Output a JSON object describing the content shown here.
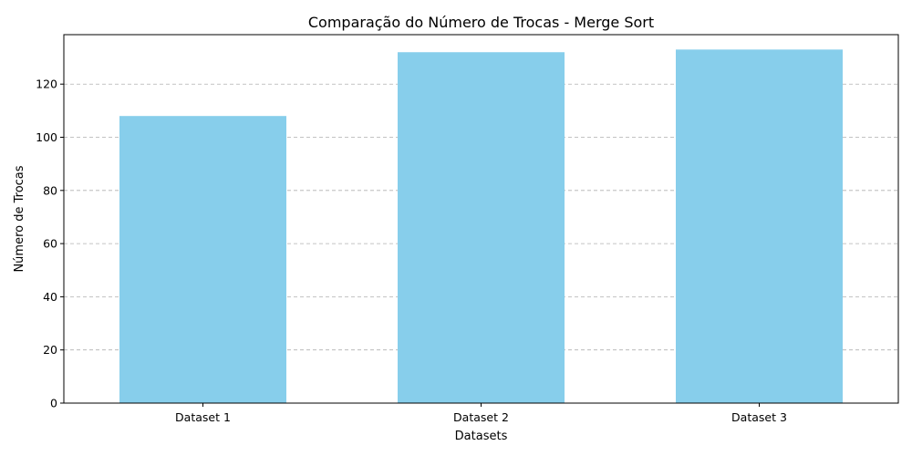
{
  "chart_data": {
    "type": "bar",
    "title": "Comparação do Número de Trocas - Merge Sort",
    "xlabel": "Datasets",
    "ylabel": "Número de Trocas",
    "categories": [
      "Dataset 1",
      "Dataset 2",
      "Dataset 3"
    ],
    "values": [
      108,
      132,
      133
    ],
    "ylim": [
      0,
      138.6
    ],
    "yticks": [
      0,
      20,
      40,
      60,
      80,
      100,
      120
    ],
    "grid": "y-dashed",
    "colors": {
      "bar": "#87CEEB"
    }
  }
}
